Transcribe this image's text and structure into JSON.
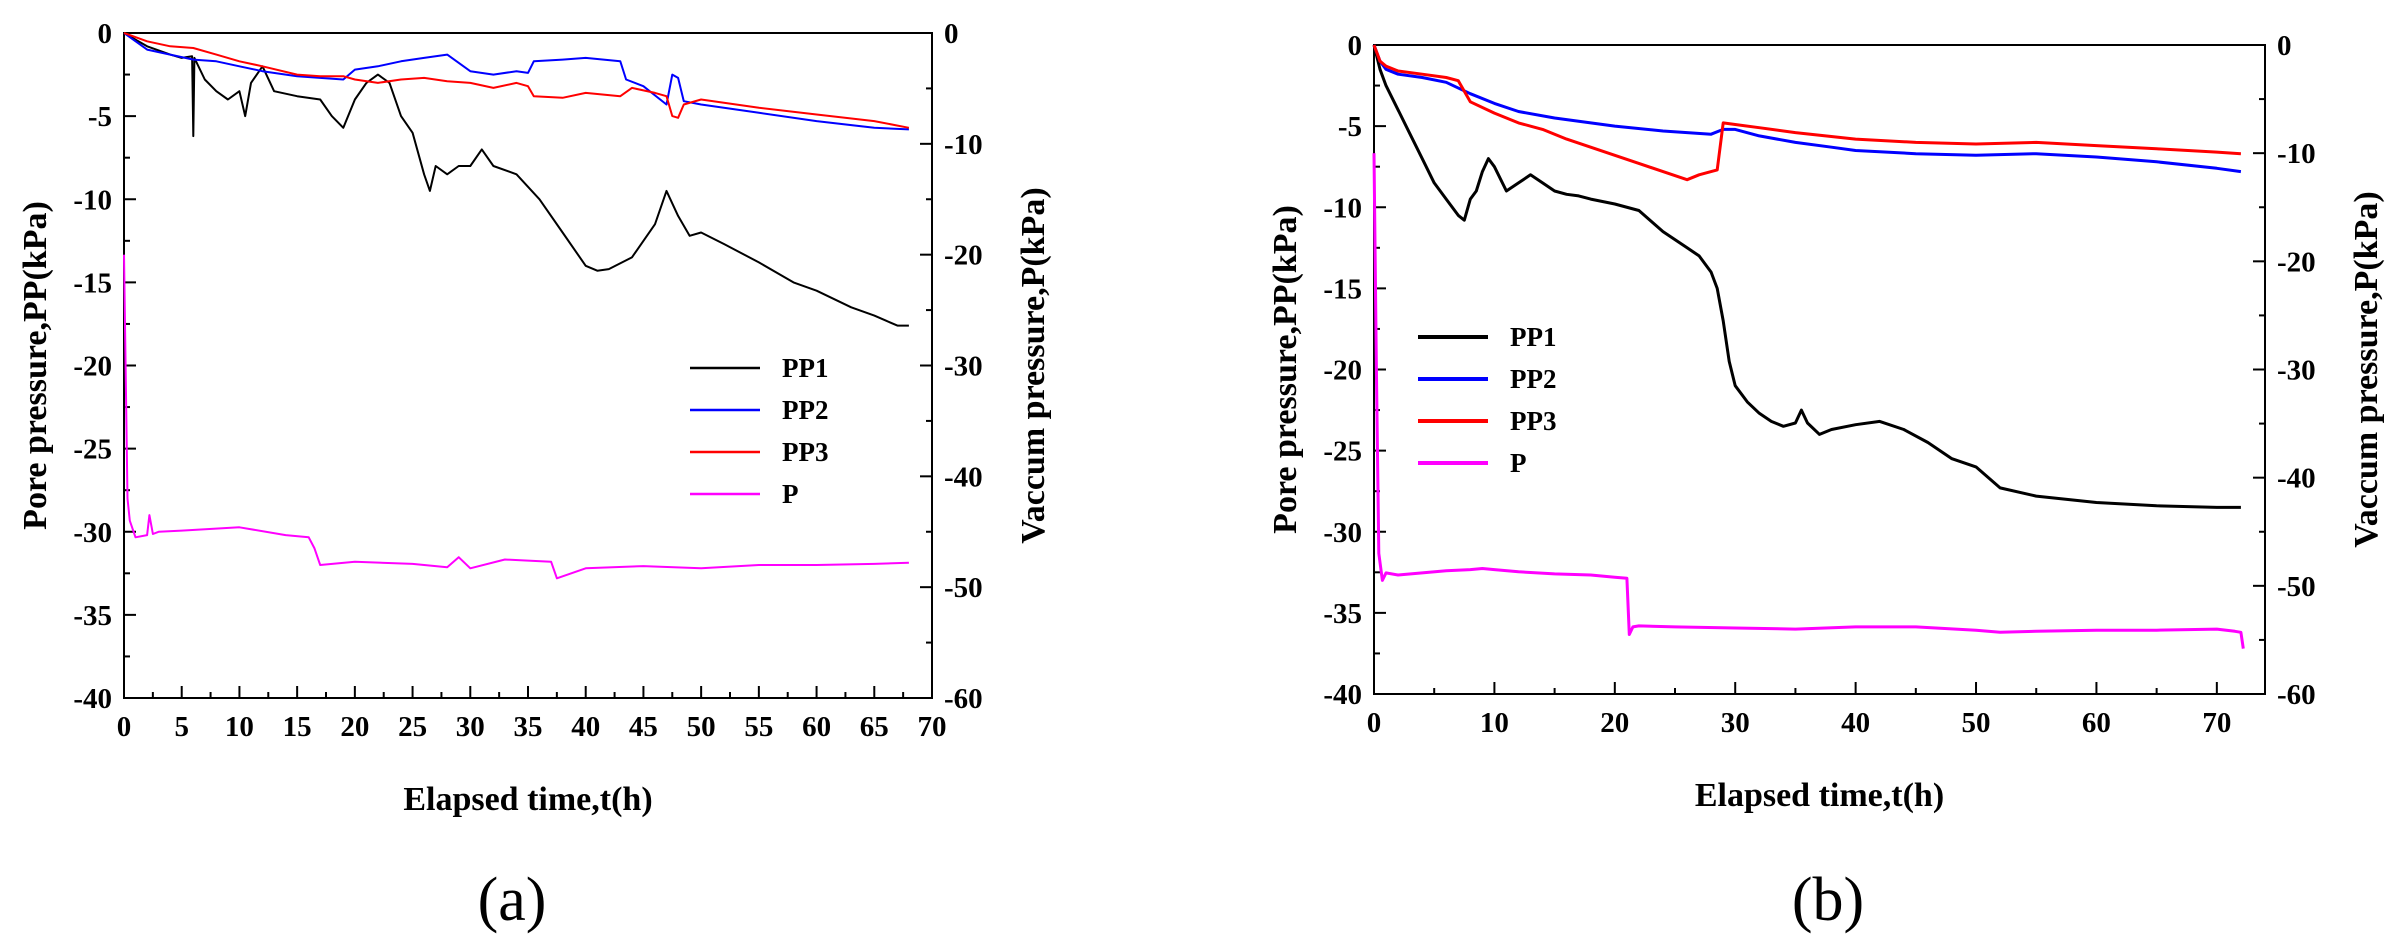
{
  "colors": {
    "PP1": "#000000",
    "PP2": "#0000ff",
    "PP3": "#ff0000",
    "P": "#ff00ff"
  },
  "chart_data": [
    {
      "type": "line",
      "panel_label": "(a)",
      "xlabel": "Elapsed time,t(h)",
      "ylabel": "Pore pressure,PP(kPa)",
      "y2label": "Vaccum pressure,P(kPa)",
      "xlim": [
        0,
        70
      ],
      "ylim": [
        -40,
        0
      ],
      "y2lim": [
        -60,
        0
      ],
      "xticks": [
        "0",
        "5",
        "10",
        "15",
        "20",
        "25",
        "30",
        "35",
        "40",
        "45",
        "50",
        "55",
        "60",
        "65",
        "70"
      ],
      "yticks": [
        "0",
        "-5",
        "-10",
        "-15",
        "-20",
        "-25",
        "-30",
        "-35",
        "-40"
      ],
      "y2ticks": [
        "0",
        "-10",
        "-20",
        "-30",
        "-40",
        "-50",
        "-60"
      ],
      "legend": [
        "PP1",
        "PP2",
        "PP3",
        "P"
      ],
      "legend_position": "center-right",
      "series": [
        {
          "name": "PP1",
          "axis": "left",
          "x": [
            0,
            2,
            4,
            5,
            5.9,
            6,
            6.1,
            7,
            8,
            9,
            10,
            10.5,
            11,
            12,
            13,
            15,
            17,
            18,
            19,
            20,
            21,
            22,
            23,
            24,
            25,
            26,
            26.5,
            27,
            28,
            29,
            30,
            31,
            32,
            34,
            36,
            38,
            40,
            41,
            42,
            44,
            46,
            47,
            48,
            49,
            50,
            52,
            55,
            58,
            60,
            63,
            65,
            66,
            67,
            68
          ],
          "y": [
            0,
            -0.8,
            -1.3,
            -1.5,
            -1.4,
            -6.2,
            -1.5,
            -2.8,
            -3.5,
            -4,
            -3.5,
            -5,
            -3,
            -2,
            -3.5,
            -3.8,
            -4,
            -5,
            -5.7,
            -4,
            -3,
            -2.5,
            -3,
            -5,
            -6,
            -8.5,
            -9.5,
            -8,
            -8.5,
            -8,
            -8,
            -7,
            -8,
            -8.5,
            -10,
            -12,
            -14,
            -14.3,
            -14.2,
            -13.5,
            -11.5,
            -9.5,
            -11,
            -12.2,
            -12,
            -12.7,
            -13.8,
            -15,
            -15.5,
            -16.5,
            -17,
            -17.3,
            -17.6,
            -17.6
          ]
        },
        {
          "name": "PP2",
          "axis": "left",
          "x": [
            0,
            2,
            4,
            6,
            8,
            10,
            12,
            15,
            17,
            19,
            20,
            22,
            24,
            26,
            28,
            30,
            32,
            34,
            35,
            35.5,
            38,
            40,
            43,
            43.5,
            45,
            47,
            47.5,
            48,
            48.5,
            50,
            55,
            60,
            65,
            68
          ],
          "y": [
            0,
            -1,
            -1.3,
            -1.6,
            -1.7,
            -2,
            -2.3,
            -2.6,
            -2.7,
            -2.8,
            -2.2,
            -2,
            -1.7,
            -1.5,
            -1.3,
            -2.3,
            -2.5,
            -2.3,
            -2.4,
            -1.7,
            -1.6,
            -1.5,
            -1.7,
            -2.8,
            -3.2,
            -4.3,
            -2.5,
            -2.7,
            -4.1,
            -4.3,
            -4.8,
            -5.3,
            -5.7,
            -5.8
          ]
        },
        {
          "name": "PP3",
          "axis": "left",
          "x": [
            0,
            2,
            4,
            6,
            8,
            10,
            12,
            15,
            17,
            19,
            20,
            22,
            24,
            26,
            28,
            30,
            32,
            34,
            35,
            35.5,
            38,
            40,
            43,
            44,
            46,
            47,
            47.5,
            48,
            48.5,
            50,
            55,
            60,
            65,
            68
          ],
          "y": [
            0,
            -0.5,
            -0.8,
            -0.9,
            -1.3,
            -1.7,
            -2,
            -2.5,
            -2.6,
            -2.6,
            -2.8,
            -3,
            -2.8,
            -2.7,
            -2.9,
            -3,
            -3.3,
            -3,
            -3.2,
            -3.8,
            -3.9,
            -3.6,
            -3.8,
            -3.3,
            -3.6,
            -3.8,
            -5,
            -5.1,
            -4.3,
            -4,
            -4.5,
            -4.9,
            -5.3,
            -5.7
          ]
        },
        {
          "name": "P",
          "axis": "right",
          "x": [
            0,
            0.3,
            0.5,
            1,
            2,
            2.2,
            2.5,
            3,
            5,
            10,
            14,
            16,
            16.5,
            17,
            20,
            25,
            28,
            29,
            30,
            33,
            35,
            37,
            37.5,
            40,
            45,
            50,
            55,
            60,
            65,
            68
          ],
          "y": [
            -20,
            -42,
            -44,
            -45.5,
            -45.3,
            -43.5,
            -45.2,
            -45,
            -44.9,
            -44.6,
            -45.3,
            -45.5,
            -46.5,
            -48,
            -47.7,
            -47.9,
            -48.2,
            -47.3,
            -48.3,
            -47.5,
            -47.6,
            -47.7,
            -49.2,
            -48.3,
            -48.1,
            -48.3,
            -48,
            -48,
            -47.9,
            -47.8
          ]
        }
      ]
    },
    {
      "type": "line",
      "panel_label": "(b)",
      "xlabel": "Elapsed time,t(h)",
      "ylabel": "Pore pressure,PP(kPa)",
      "y2label": "Vaccum pressure,P(kPa)",
      "xlim": [
        0,
        74
      ],
      "ylim": [
        -40,
        0
      ],
      "y2lim": [
        -60,
        0
      ],
      "xticks": [
        "0",
        "10",
        "20",
        "30",
        "40",
        "50",
        "60",
        "70"
      ],
      "yticks": [
        "0",
        "-5",
        "-10",
        "-15",
        "-20",
        "-25",
        "-30",
        "-35",
        "-40"
      ],
      "y2ticks": [
        "0",
        "-10",
        "-20",
        "-30",
        "-40",
        "-50",
        "-60"
      ],
      "legend": [
        "PP1",
        "PP2",
        "PP3",
        "P"
      ],
      "legend_position": "center-left",
      "series": [
        {
          "name": "PP1",
          "axis": "left",
          "x": [
            0,
            0.5,
            1,
            2,
            3,
            4,
            5,
            6,
            7,
            7.5,
            8,
            8.5,
            9,
            9.5,
            10,
            11,
            12,
            13,
            14,
            15,
            16,
            17,
            18,
            20,
            22,
            24,
            26,
            27,
            28,
            28.5,
            29,
            29.5,
            30,
            31,
            32,
            33,
            34,
            35,
            35.5,
            36,
            37,
            38,
            40,
            42,
            44,
            46,
            48,
            50,
            52,
            55,
            60,
            65,
            70,
            72
          ],
          "y": [
            0,
            -1.5,
            -2.5,
            -4,
            -5.5,
            -7,
            -8.5,
            -9.5,
            -10.5,
            -10.8,
            -9.5,
            -9,
            -7.8,
            -7,
            -7.5,
            -9,
            -8.5,
            -8,
            -8.5,
            -9,
            -9.2,
            -9.3,
            -9.5,
            -9.8,
            -10.2,
            -11.5,
            -12.5,
            -13,
            -14,
            -15,
            -17,
            -19.5,
            -21,
            -22,
            -22.7,
            -23.2,
            -23.5,
            -23.3,
            -22.5,
            -23.3,
            -24,
            -23.7,
            -23.4,
            -23.2,
            -23.7,
            -24.5,
            -25.5,
            -26,
            -27.3,
            -27.8,
            -28.2,
            -28.4,
            -28.5,
            -28.5
          ]
        },
        {
          "name": "PP2",
          "axis": "left",
          "x": [
            0,
            0.5,
            1,
            2,
            4,
            6,
            8,
            10,
            12,
            15,
            18,
            20,
            24,
            28,
            29,
            30,
            32,
            35,
            38,
            40,
            45,
            50,
            55,
            60,
            65,
            70,
            72
          ],
          "y": [
            0,
            -1,
            -1.5,
            -1.8,
            -2,
            -2.3,
            -3,
            -3.6,
            -4.1,
            -4.5,
            -4.8,
            -5,
            -5.3,
            -5.5,
            -5.2,
            -5.2,
            -5.6,
            -6,
            -6.3,
            -6.5,
            -6.7,
            -6.8,
            -6.7,
            -6.9,
            -7.2,
            -7.6,
            -7.8
          ]
        },
        {
          "name": "PP3",
          "axis": "left",
          "x": [
            0,
            0.5,
            1,
            2,
            4,
            6,
            7,
            8,
            10,
            12,
            14,
            16,
            18,
            20,
            22,
            24,
            26,
            27,
            28,
            28.5,
            29,
            30,
            32,
            35,
            40,
            45,
            50,
            55,
            60,
            65,
            70,
            72
          ],
          "y": [
            0,
            -1,
            -1.3,
            -1.6,
            -1.8,
            -2,
            -2.2,
            -3.5,
            -4.2,
            -4.8,
            -5.2,
            -5.8,
            -6.3,
            -6.8,
            -7.3,
            -7.8,
            -8.3,
            -8,
            -7.8,
            -7.7,
            -4.8,
            -4.9,
            -5.1,
            -5.4,
            -5.8,
            -6,
            -6.1,
            -6,
            -6.2,
            -6.4,
            -6.6,
            -6.7
          ]
        },
        {
          "name": "P",
          "axis": "right",
          "x": [
            0,
            0.2,
            0.4,
            0.7,
            1,
            2,
            4,
            6,
            8,
            9,
            10,
            12,
            15,
            18,
            20,
            21,
            21.2,
            21.5,
            22,
            25,
            30,
            35,
            40,
            45,
            50,
            52,
            55,
            60,
            65,
            70,
            71.5,
            72,
            72.2
          ],
          "y": [
            -10,
            -30,
            -47,
            -49.5,
            -48.8,
            -49,
            -48.8,
            -48.6,
            -48.5,
            -48.4,
            -48.5,
            -48.7,
            -48.9,
            -49,
            -49.2,
            -49.3,
            -54.5,
            -53.8,
            -53.7,
            -53.8,
            -53.9,
            -54,
            -53.8,
            -53.8,
            -54.1,
            -54.3,
            -54.2,
            -54.1,
            -54.1,
            -54,
            -54.2,
            -54.3,
            -55.8
          ]
        }
      ]
    }
  ]
}
